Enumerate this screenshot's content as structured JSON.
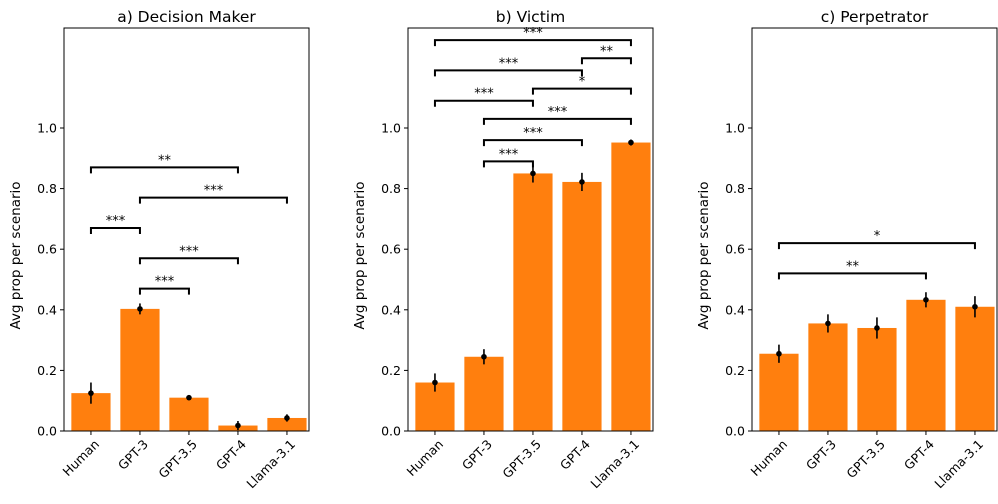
{
  "chart_data": [
    {
      "type": "bar",
      "title": "a) Decision Maker",
      "ylabel": "Avg prop per scenario",
      "xlabel": "",
      "categories": [
        "Human",
        "GPT-3",
        "GPT-3.5",
        "GPT-4",
        "Llama-3.1"
      ],
      "values": [
        0.125,
        0.403,
        0.11,
        0.018,
        0.043
      ],
      "errors": [
        0.035,
        0.018,
        0.004,
        0.015,
        0.012
      ],
      "ylim": [
        0,
        1.33
      ],
      "yticks": [
        0.0,
        0.2,
        0.4,
        0.6,
        0.8,
        1.0
      ],
      "ytick_labels": [
        "0.0",
        "0.2",
        "0.4",
        "0.6",
        "0.8",
        "1.0"
      ],
      "grid": false,
      "color": "#ff7f0e",
      "significance": [
        {
          "from": 0,
          "to": 1,
          "y": 0.67,
          "label": "***"
        },
        {
          "from": 1,
          "to": 2,
          "y": 0.47,
          "label": "***"
        },
        {
          "from": 1,
          "to": 3,
          "y": 0.57,
          "label": "***"
        },
        {
          "from": 1,
          "to": 4,
          "y": 0.77,
          "label": "***"
        },
        {
          "from": 0,
          "to": 3,
          "y": 0.87,
          "label": "**"
        }
      ]
    },
    {
      "type": "bar",
      "title": "b) Victim",
      "ylabel": "Avg prop per scenario",
      "xlabel": "",
      "categories": [
        "Human",
        "GPT-3",
        "GPT-3.5",
        "GPT-4",
        "Llama-3.1"
      ],
      "values": [
        0.16,
        0.245,
        0.85,
        0.822,
        0.952
      ],
      "errors": [
        0.03,
        0.025,
        0.03,
        0.03,
        0.01
      ],
      "ylim": [
        0,
        1.33
      ],
      "yticks": [
        0.0,
        0.2,
        0.4,
        0.6,
        0.8,
        1.0
      ],
      "ytick_labels": [
        "0.0",
        "0.2",
        "0.4",
        "0.6",
        "0.8",
        "1.0"
      ],
      "grid": false,
      "color": "#ff7f0e",
      "significance": [
        {
          "from": 1,
          "to": 2,
          "y": 0.89,
          "label": "***"
        },
        {
          "from": 1,
          "to": 3,
          "y": 0.96,
          "label": "***"
        },
        {
          "from": 1,
          "to": 4,
          "y": 1.03,
          "label": "***"
        },
        {
          "from": 0,
          "to": 2,
          "y": 1.09,
          "label": "***"
        },
        {
          "from": 2,
          "to": 4,
          "y": 1.13,
          "label": "*"
        },
        {
          "from": 0,
          "to": 3,
          "y": 1.19,
          "label": "***"
        },
        {
          "from": 3,
          "to": 4,
          "y": 1.23,
          "label": "**"
        },
        {
          "from": 0,
          "to": 4,
          "y": 1.29,
          "label": "***"
        }
      ]
    },
    {
      "type": "bar",
      "title": "c) Perpetrator",
      "ylabel": "Avg prop per scenario",
      "xlabel": "",
      "categories": [
        "Human",
        "GPT-3",
        "GPT-3.5",
        "GPT-4",
        "Llama-3.1"
      ],
      "values": [
        0.255,
        0.355,
        0.34,
        0.433,
        0.41
      ],
      "errors": [
        0.03,
        0.03,
        0.035,
        0.025,
        0.035
      ],
      "ylim": [
        0,
        1.33
      ],
      "yticks": [
        0.0,
        0.2,
        0.4,
        0.6,
        0.8,
        1.0
      ],
      "ytick_labels": [
        "0.0",
        "0.2",
        "0.4",
        "0.6",
        "0.8",
        "1.0"
      ],
      "grid": false,
      "color": "#ff7f0e",
      "significance": [
        {
          "from": 0,
          "to": 3,
          "y": 0.52,
          "label": "**"
        },
        {
          "from": 0,
          "to": 4,
          "y": 0.62,
          "label": "*"
        }
      ]
    }
  ]
}
